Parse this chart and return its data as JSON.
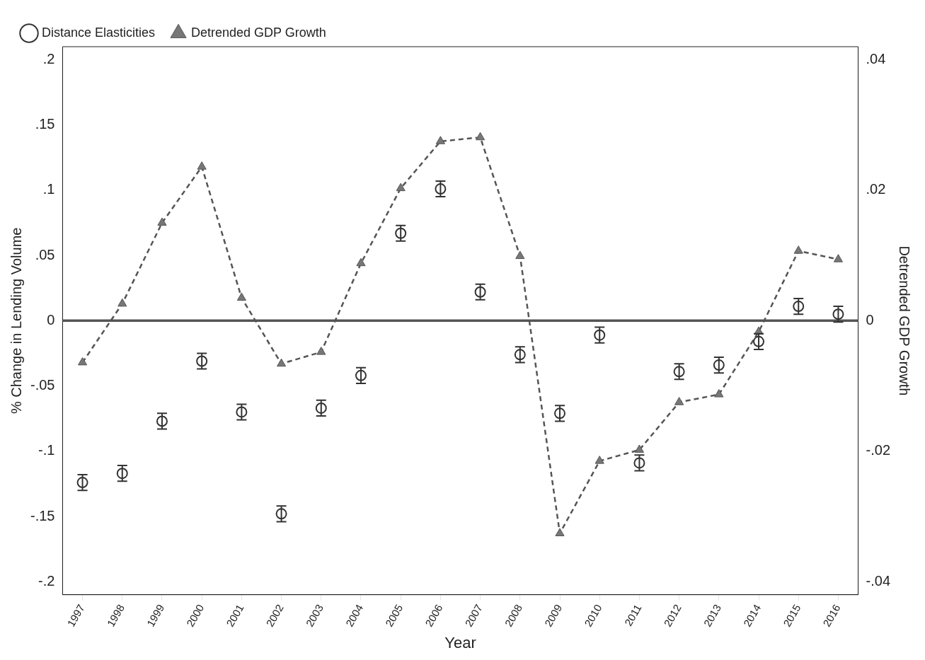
{
  "chart_data": {
    "type": "scatter",
    "xlabel": "Year",
    "ylabel": "% Change in Lending Volume",
    "y2label": "Detrended GDP Growth",
    "categories": [
      "1997",
      "1998",
      "1999",
      "2000",
      "2001",
      "2002",
      "2003",
      "2004",
      "2005",
      "2006",
      "2007",
      "2008",
      "2009",
      "2010",
      "2011",
      "2012",
      "2013",
      "2014",
      "2015",
      "2016"
    ],
    "series": [
      {
        "name": "Distance Elasticities",
        "color": "#333333",
        "marker": "circle",
        "values": [
          -0.124,
          -0.117,
          -0.077,
          -0.031,
          -0.07,
          -0.148,
          -0.067,
          -0.042,
          0.067,
          0.101,
          0.022,
          -0.026,
          -0.071,
          -0.011,
          -0.109,
          -0.039,
          -0.034,
          -0.016,
          0.011,
          0.005
        ],
        "errors": [
          0.006,
          0.006,
          0.006,
          0.006,
          0.006,
          0.006,
          0.006,
          0.006,
          0.006,
          0.006,
          0.006,
          0.006,
          0.006,
          0.006,
          0.006,
          0.006,
          0.006,
          0.006,
          0.006,
          0.006
        ]
      },
      {
        "name": "Detrended GDP Growth",
        "type": "line",
        "axis": "y2",
        "color": "#555555",
        "marker": "triangle",
        "line_style": "dashed",
        "values": [
          -0.0064,
          0.0026,
          0.015,
          0.0236,
          0.0035,
          -0.0066,
          -0.0048,
          0.0088,
          0.0203,
          0.0275,
          0.0281,
          0.0099,
          -0.0326,
          -0.0215,
          -0.0198,
          -0.0125,
          -0.0113,
          -0.0017,
          0.0107,
          0.0094
        ]
      }
    ],
    "ylim": [
      -0.21,
      0.21
    ],
    "yticks": [
      {
        "value": -0.2,
        "label": "-.2"
      },
      {
        "value": -0.15,
        "label": "-.15"
      },
      {
        "value": -0.1,
        "label": "-.1"
      },
      {
        "value": -0.05,
        "label": "-.05"
      },
      {
        "value": 0,
        "label": "0"
      },
      {
        "value": 0.05,
        "label": ".05"
      },
      {
        "value": 0.1,
        "label": ".1"
      },
      {
        "value": 0.15,
        "label": ".15"
      },
      {
        "value": 0.2,
        "label": ".2"
      }
    ],
    "y2lim": [
      -0.042,
      0.042
    ],
    "y2ticks": [
      {
        "value": -0.04,
        "label": "-.04"
      },
      {
        "value": -0.02,
        "label": "-.02"
      },
      {
        "value": 0,
        "label": "0"
      },
      {
        "value": 0.02,
        "label": ".02"
      },
      {
        "value": 0.04,
        "label": ".04"
      }
    ],
    "ref_lines": [
      {
        "axis": "y",
        "value": 0,
        "color": "#555555"
      }
    ],
    "grid": false,
    "legend": "top left"
  }
}
